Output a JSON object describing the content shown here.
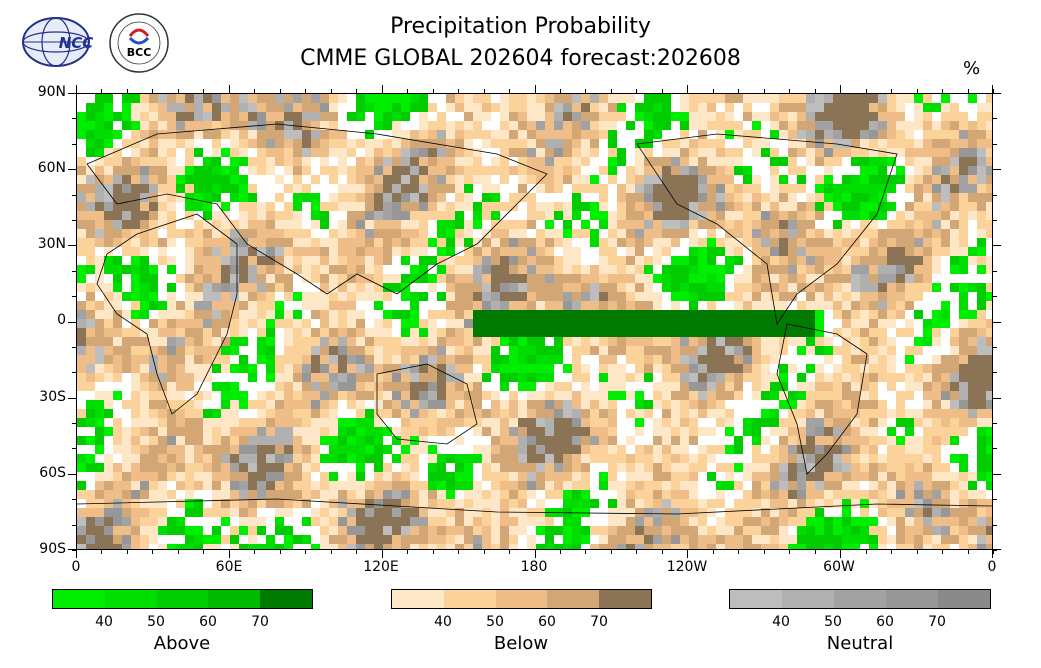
{
  "title": {
    "line1": "Precipitation Probability",
    "line2": "CMME GLOBAL 202604 forecast:202608",
    "unit": "%"
  },
  "logos": {
    "ncc_text": "NCC",
    "bcc_text": "BCC"
  },
  "map": {
    "lat_labels": [
      "90N",
      "60N",
      "30N",
      "0",
      "30S",
      "60S",
      "90S"
    ],
    "lon_labels": [
      "0",
      "60E",
      "120E",
      "180",
      "120W",
      "60W",
      "0"
    ]
  },
  "legends": [
    {
      "name": "Above",
      "colors": [
        "#00ee00",
        "#00dd00",
        "#00cc00",
        "#00bb00",
        "#007a00"
      ],
      "ticks": [
        "40",
        "50",
        "60",
        "70"
      ]
    },
    {
      "name": "Below",
      "colors": [
        "#fde7c7",
        "#fbd29a",
        "#efbd88",
        "#d2a675",
        "#8b7355"
      ],
      "ticks": [
        "40",
        "50",
        "60",
        "70"
      ]
    },
    {
      "name": "Neutral",
      "colors": [
        "#bdbdbd",
        "#b0b0b0",
        "#a2a2a2",
        "#979797",
        "#8a8a8a"
      ],
      "ticks": [
        "40",
        "50",
        "60",
        "70"
      ]
    }
  ]
}
